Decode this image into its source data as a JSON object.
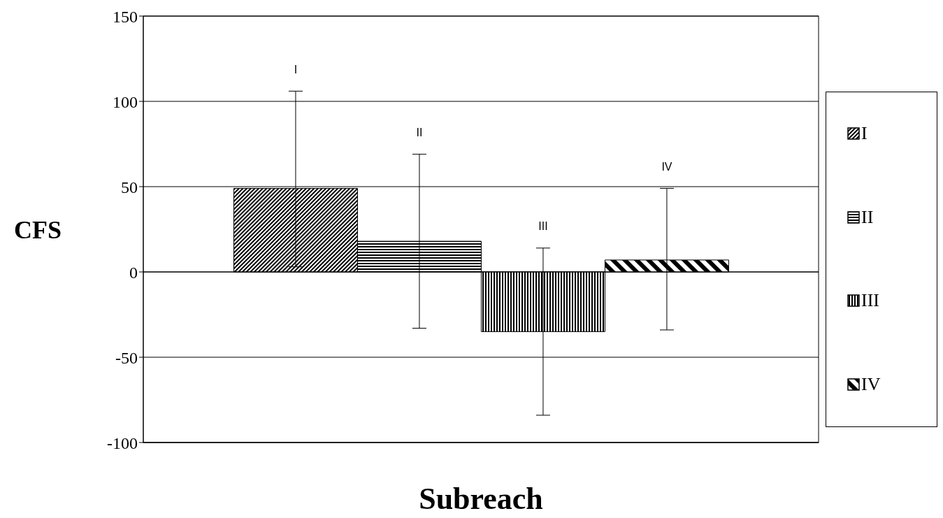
{
  "chart_data": {
    "type": "bar",
    "xlabel": "Subreach",
    "ylabel": "CFS",
    "categories": [
      null
    ],
    "series": [
      {
        "name": "I",
        "color": "#000000",
        "values": [
          49
        ],
        "errors": [
          [
            3,
            106
          ]
        ]
      },
      {
        "name": "II",
        "color": "#000000",
        "values": [
          18
        ],
        "errors": [
          [
            -33,
            69
          ]
        ]
      },
      {
        "name": "III",
        "color": "#000000",
        "values": [
          -35
        ],
        "errors": [
          [
            -84,
            14
          ]
        ]
      },
      {
        "name": "IV",
        "color": "#000000",
        "values": [
          7
        ],
        "errors": [
          [
            -34,
            49
          ]
        ]
      }
    ],
    "annotations": [
      "I",
      "II",
      "III",
      "IV"
    ],
    "ylim": [
      -100,
      150
    ],
    "yticks": [
      -100,
      -50,
      0,
      50,
      100,
      150
    ],
    "grid": "y",
    "legend": "right"
  }
}
